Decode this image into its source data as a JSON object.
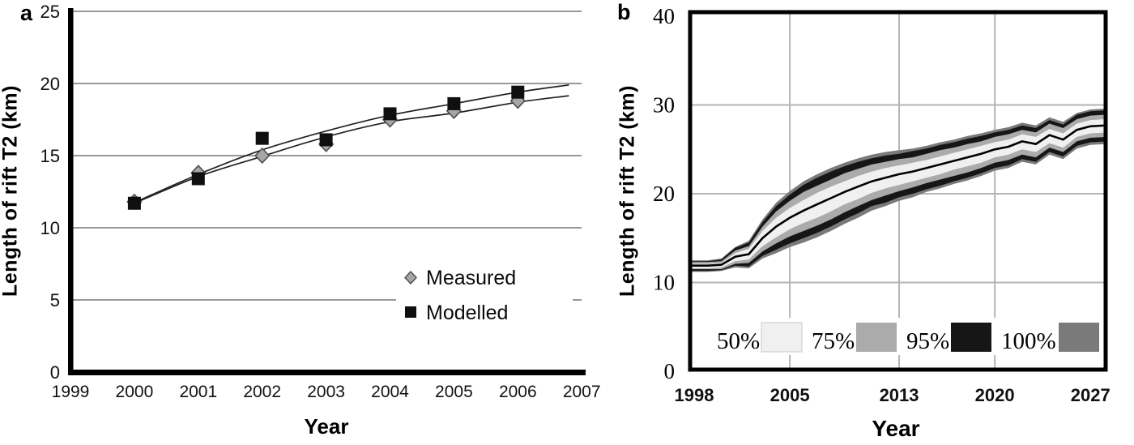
{
  "figure": {
    "panel_a_label": "a",
    "panel_b_label": "b"
  },
  "chart_data": [
    {
      "id": "a",
      "type": "line",
      "title": "",
      "xlabel": "Year",
      "ylabel": "Length of rift T2 (km)",
      "xlim": [
        1999,
        2007
      ],
      "ylim": [
        0,
        25
      ],
      "xticks": [
        1999,
        2000,
        2001,
        2002,
        2003,
        2004,
        2005,
        2006,
        2007
      ],
      "yticks": [
        0,
        5,
        10,
        15,
        20,
        25
      ],
      "grid": "horizontal",
      "grid_color": "#999999",
      "axis_color": "#000000",
      "legend_position": "inside-right",
      "legend": [
        {
          "label": "Measured",
          "marker": "diamond"
        },
        {
          "label": "Modelled",
          "marker": "square"
        }
      ],
      "series": [
        {
          "name": "Measured",
          "marker": "diamond",
          "marker_fill": "#a6a6a6",
          "marker_stroke": "#4d4d4d",
          "x": [
            2000,
            2001,
            2002,
            2003,
            2004,
            2005,
            2006
          ],
          "values": [
            11.8,
            13.8,
            15.0,
            15.8,
            17.5,
            18.1,
            18.8
          ]
        },
        {
          "name": "Modelled",
          "marker": "square",
          "marker_fill": "#0f0f0f",
          "marker_stroke": "#0f0f0f",
          "x": [
            2000,
            2001,
            2002,
            2003,
            2004,
            2005,
            2006
          ],
          "values": [
            11.7,
            13.4,
            16.2,
            16.1,
            17.9,
            18.6,
            19.4
          ]
        }
      ],
      "trend_lines": [
        {
          "name": "modelled-fit",
          "color": "#222222",
          "x": [
            2000,
            2001,
            2002,
            2003,
            2004,
            2005,
            2006,
            2006.8
          ],
          "values": [
            11.75,
            13.7,
            15.4,
            16.7,
            17.8,
            18.6,
            19.4,
            19.9
          ]
        },
        {
          "name": "measured-fit",
          "color": "#222222",
          "x": [
            2000,
            2001,
            2002,
            2003,
            2004,
            2005,
            2006,
            2006.8
          ],
          "values": [
            11.7,
            13.55,
            14.95,
            16.3,
            17.35,
            17.95,
            18.7,
            19.15
          ]
        }
      ]
    },
    {
      "id": "b",
      "type": "area",
      "subtype": "fan-projection",
      "title": "",
      "xlabel": "Year",
      "ylabel": "Length of rift T2 (km)",
      "xlim": [
        1998,
        2028
      ],
      "ylim": [
        0,
        40
      ],
      "xticks": [
        1998,
        2005,
        2013,
        2020,
        2027
      ],
      "yticks": [
        0,
        10,
        20,
        30,
        40
      ],
      "grid": "both",
      "grid_color": "#b5b5b5",
      "border_color": "#000000",
      "median_color": "#000000",
      "years": [
        1998,
        1999,
        2000,
        2001,
        2002,
        2003,
        2004,
        2005,
        2006,
        2007,
        2008,
        2009,
        2010,
        2011,
        2012,
        2013,
        2014,
        2015,
        2016,
        2017,
        2018,
        2019,
        2020,
        2021,
        2022,
        2023,
        2024,
        2025,
        2026,
        2027,
        2028
      ],
      "median": [
        11.9,
        11.9,
        12.0,
        12.9,
        13.2,
        15.0,
        16.3,
        17.3,
        18.1,
        18.8,
        19.5,
        20.2,
        20.8,
        21.4,
        21.8,
        22.2,
        22.5,
        22.9,
        23.3,
        23.7,
        24.1,
        24.5,
        25.0,
        25.3,
        25.9,
        25.6,
        26.6,
        26.1,
        27.2,
        27.6,
        27.7
      ],
      "bands": [
        {
          "name": "100%",
          "color": "#7a7a7a",
          "upper": [
            12.5,
            12.5,
            12.7,
            14.0,
            14.7,
            17.1,
            19.0,
            20.3,
            21.4,
            22.2,
            22.9,
            23.5,
            24.0,
            24.4,
            24.7,
            24.9,
            25.1,
            25.4,
            25.8,
            26.1,
            26.5,
            26.8,
            27.2,
            27.5,
            28.0,
            27.7,
            28.6,
            28.1,
            29.1,
            29.5,
            29.6
          ],
          "lower": [
            11.2,
            11.2,
            11.3,
            11.7,
            11.6,
            12.7,
            13.3,
            14.0,
            14.5,
            15.1,
            15.8,
            16.6,
            17.3,
            18.1,
            18.6,
            19.2,
            19.6,
            20.2,
            20.6,
            21.1,
            21.5,
            22.0,
            22.6,
            22.9,
            23.6,
            23.3,
            24.4,
            23.9,
            25.1,
            25.5,
            25.6
          ]
        },
        {
          "name": "95%",
          "color": "#161616",
          "upper": [
            12.4,
            12.4,
            12.6,
            13.9,
            14.5,
            16.8,
            18.6,
            19.9,
            21.0,
            21.8,
            22.5,
            23.1,
            23.6,
            24.0,
            24.3,
            24.5,
            24.8,
            25.1,
            25.5,
            25.8,
            26.2,
            26.5,
            26.9,
            27.2,
            27.7,
            27.4,
            28.3,
            27.8,
            28.9,
            29.3,
            29.4
          ],
          "lower": [
            11.3,
            11.3,
            11.4,
            11.9,
            11.8,
            13.0,
            13.7,
            14.4,
            15.0,
            15.6,
            16.3,
            17.1,
            17.8,
            18.6,
            19.0,
            19.6,
            20.0,
            20.5,
            20.9,
            21.4,
            21.8,
            22.3,
            22.9,
            23.2,
            23.9,
            23.6,
            24.7,
            24.2,
            25.4,
            25.8,
            25.9
          ]
        },
        {
          "name": "75%",
          "color": "#ababab",
          "upper": [
            12.3,
            12.3,
            12.4,
            13.6,
            14.1,
            16.3,
            18.0,
            19.2,
            20.2,
            20.9,
            21.6,
            22.3,
            22.8,
            23.3,
            23.6,
            23.9,
            24.1,
            24.5,
            24.9,
            25.2,
            25.6,
            25.9,
            26.4,
            26.7,
            27.2,
            26.9,
            27.9,
            27.4,
            28.4,
            28.8,
            28.9
          ],
          "lower": [
            11.5,
            11.5,
            11.5,
            12.1,
            12.2,
            13.5,
            14.4,
            15.2,
            15.8,
            16.4,
            17.1,
            17.9,
            18.6,
            19.3,
            19.8,
            20.3,
            20.7,
            21.2,
            21.6,
            22.0,
            22.4,
            22.9,
            23.5,
            23.8,
            24.4,
            24.1,
            25.2,
            24.7,
            25.9,
            26.3,
            26.4
          ]
        },
        {
          "name": "50%",
          "color": "#f0f0f0",
          "upper": [
            12.1,
            12.1,
            12.2,
            13.3,
            13.8,
            15.8,
            17.3,
            18.4,
            19.3,
            20.1,
            20.8,
            21.4,
            22.0,
            22.5,
            22.9,
            23.2,
            23.5,
            23.8,
            24.2,
            24.6,
            25.0,
            25.4,
            25.8,
            26.1,
            26.7,
            26.4,
            27.3,
            26.8,
            27.9,
            28.3,
            28.4
          ],
          "lower": [
            11.6,
            11.6,
            11.7,
            12.4,
            12.6,
            14.1,
            15.1,
            16.0,
            16.7,
            17.3,
            18.0,
            18.8,
            19.4,
            20.1,
            20.6,
            21.0,
            21.4,
            21.8,
            22.2,
            22.7,
            23.1,
            23.5,
            24.1,
            24.4,
            25.0,
            24.7,
            25.7,
            25.2,
            26.4,
            26.8,
            26.9
          ]
        }
      ],
      "legend": [
        {
          "label": "50%",
          "color": "#f0f0f0"
        },
        {
          "label": "75%",
          "color": "#ababab"
        },
        {
          "label": "95%",
          "color": "#161616"
        },
        {
          "label": "100%",
          "color": "#7a7a7a"
        }
      ]
    }
  ]
}
